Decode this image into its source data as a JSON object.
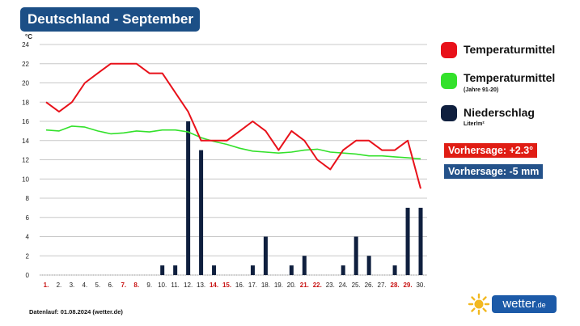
{
  "title": "Deutschland - September",
  "legend": {
    "temp": "Temperaturmittel",
    "clim": "Temperaturmittel",
    "clim_sub": "(Jahre 91-20)",
    "precip": "Niederschlag",
    "precip_unit": "Liter/m²"
  },
  "forecast": {
    "temp": "Vorhersage: +2.3°",
    "precip": "Vorhersage: -5 mm"
  },
  "footer": "Datenlauf: 01.08.2024 (wetter.de)",
  "logo": {
    "main": "wetter",
    "suffix": ".de"
  },
  "colors": {
    "temp": "#e8111a",
    "clim": "#33e12b",
    "precip": "#0f1f3e",
    "badge_blue": "#1c4f86",
    "forecast_red": "#e01d14",
    "forecast_blue": "#24528a",
    "weekend_label": "#c81414",
    "weekday_label": "#222222"
  },
  "chart_data": {
    "type": "line+bar",
    "y_unit": "°C",
    "ylim": [
      0,
      24
    ],
    "yticks": [
      0,
      2,
      4,
      6,
      8,
      10,
      12,
      14,
      16,
      18,
      20,
      22,
      24
    ],
    "grid": true,
    "days": [
      "1.",
      "2.",
      "3.",
      "4.",
      "5.",
      "6.",
      "7.",
      "8.",
      "9.",
      "10.",
      "11.",
      "12.",
      "13.",
      "14.",
      "15.",
      "16.",
      "17.",
      "18.",
      "19.",
      "20.",
      "21.",
      "22.",
      "23.",
      "24.",
      "25.",
      "26.",
      "27.",
      "28.",
      "29.",
      "30."
    ],
    "weekend_days": [
      1,
      7,
      8,
      14,
      15,
      21,
      22,
      28,
      29
    ],
    "series": [
      {
        "name": "Temperaturmittel",
        "kind": "line",
        "values": [
          18,
          17,
          18,
          20,
          21,
          22,
          22,
          22,
          21,
          21,
          19,
          17,
          14,
          14,
          14,
          15,
          16,
          15,
          13,
          15,
          14,
          12,
          11,
          13,
          14,
          14,
          13,
          13,
          14,
          9
        ]
      },
      {
        "name": "Temperaturmittel (Jahre 91-20)",
        "kind": "line",
        "values": [
          15.1,
          15.0,
          15.5,
          15.4,
          15.0,
          14.7,
          14.8,
          15.0,
          14.9,
          15.1,
          15.1,
          14.9,
          14.3,
          13.9,
          13.6,
          13.2,
          12.9,
          12.8,
          12.7,
          12.8,
          13.0,
          13.1,
          12.8,
          12.7,
          12.6,
          12.4,
          12.4,
          12.3,
          12.2,
          12.1
        ]
      },
      {
        "name": "Niederschlag",
        "kind": "bar",
        "values": [
          0,
          0,
          0,
          0,
          0,
          0,
          0,
          0,
          0,
          1,
          1,
          16,
          13,
          1,
          0,
          0,
          1,
          4,
          0,
          1,
          2,
          0,
          0,
          1,
          4,
          2,
          0,
          1,
          7,
          7
        ]
      }
    ]
  }
}
